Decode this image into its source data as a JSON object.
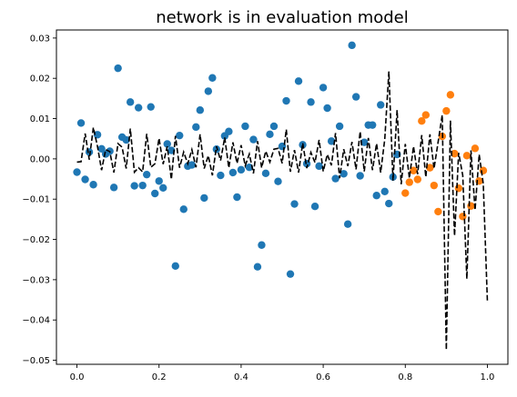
{
  "chart_data": {
    "type": "scatter",
    "title": "network is in evaluation model",
    "xlabel": "",
    "ylabel": "",
    "xlim": [
      -0.05,
      1.05
    ],
    "ylim": [
      -0.051,
      0.032
    ],
    "xticks": [
      0.0,
      0.2,
      0.4,
      0.6,
      0.8,
      1.0
    ],
    "xtick_labels": [
      "0.0",
      "0.2",
      "0.4",
      "0.6",
      "0.8",
      "1.0"
    ],
    "yticks": [
      -0.05,
      -0.04,
      -0.03,
      -0.02,
      -0.01,
      0.0,
      0.01,
      0.02,
      0.03
    ],
    "ytick_labels": [
      "−0.05",
      "−0.04",
      "−0.03",
      "−0.02",
      "−0.01",
      "0.00",
      "0.01",
      "0.02",
      "0.03"
    ],
    "grid": false,
    "legend": null,
    "series": [
      {
        "kind": "scatter",
        "color": "#1f77b4",
        "points": [
          [
            0.0,
            -0.0033
          ],
          [
            0.01,
            0.0089
          ],
          [
            0.02,
            -0.0051
          ],
          [
            0.03,
            0.0017
          ],
          [
            0.04,
            -0.0064
          ],
          [
            0.05,
            0.006
          ],
          [
            0.06,
            0.0025
          ],
          [
            0.07,
            0.0012
          ],
          [
            0.08,
            0.0019
          ],
          [
            0.09,
            -0.0071
          ],
          [
            0.1,
            0.0225
          ],
          [
            0.11,
            0.0054
          ],
          [
            0.12,
            0.0047
          ],
          [
            0.13,
            0.0141
          ],
          [
            0.14,
            -0.0067
          ],
          [
            0.15,
            0.0127
          ],
          [
            0.16,
            -0.0066
          ],
          [
            0.17,
            -0.0039
          ],
          [
            0.18,
            0.0129
          ],
          [
            0.19,
            -0.0086
          ],
          [
            0.2,
            -0.0055
          ],
          [
            0.21,
            -0.0072
          ],
          [
            0.22,
            0.0037
          ],
          [
            0.23,
            0.0021
          ],
          [
            0.24,
            -0.0266
          ],
          [
            0.25,
            0.0058
          ],
          [
            0.26,
            -0.0125
          ],
          [
            0.27,
            -0.0018
          ],
          [
            0.28,
            -0.0015
          ],
          [
            0.29,
            0.0079
          ],
          [
            0.3,
            0.0121
          ],
          [
            0.31,
            -0.0097
          ],
          [
            0.32,
            0.0168
          ],
          [
            0.33,
            0.0201
          ],
          [
            0.34,
            0.0024
          ],
          [
            0.35,
            -0.0041
          ],
          [
            0.36,
            0.0057
          ],
          [
            0.37,
            0.0068
          ],
          [
            0.38,
            -0.0034
          ],
          [
            0.39,
            -0.0095
          ],
          [
            0.4,
            -0.0027
          ],
          [
            0.41,
            0.0081
          ],
          [
            0.42,
            -0.0021
          ],
          [
            0.43,
            0.0048
          ],
          [
            0.44,
            -0.0268
          ],
          [
            0.45,
            -0.0214
          ],
          [
            0.46,
            -0.0036
          ],
          [
            0.47,
            0.0061
          ],
          [
            0.48,
            0.0081
          ],
          [
            0.49,
            -0.0056
          ],
          [
            0.5,
            0.0031
          ],
          [
            0.51,
            0.0144
          ],
          [
            0.52,
            -0.0286
          ],
          [
            0.53,
            -0.0112
          ],
          [
            0.54,
            0.0193
          ],
          [
            0.55,
            0.0035
          ],
          [
            0.56,
            -0.0012
          ],
          [
            0.57,
            0.0141
          ],
          [
            0.58,
            -0.0118
          ],
          [
            0.59,
            -0.0018
          ],
          [
            0.6,
            0.0177
          ],
          [
            0.61,
            0.0126
          ],
          [
            0.62,
            0.0044
          ],
          [
            0.63,
            -0.0049
          ],
          [
            0.64,
            0.0081
          ],
          [
            0.65,
            -0.0037
          ],
          [
            0.66,
            -0.0162
          ],
          [
            0.67,
            0.0282
          ],
          [
            0.68,
            0.0154
          ],
          [
            0.69,
            -0.0042
          ],
          [
            0.7,
            0.0041
          ],
          [
            0.71,
            0.0084
          ],
          [
            0.72,
            0.0084
          ],
          [
            0.73,
            -0.0091
          ],
          [
            0.74,
            0.0134
          ],
          [
            0.75,
            -0.0081
          ],
          [
            0.76,
            -0.0111
          ],
          [
            0.77,
            -0.0045
          ],
          [
            0.78,
            0.0011
          ]
        ]
      },
      {
        "kind": "scatter",
        "color": "#ff7f0e",
        "points": [
          [
            0.8,
            -0.0085
          ],
          [
            0.81,
            -0.0058
          ],
          [
            0.82,
            -0.0029
          ],
          [
            0.83,
            -0.0051
          ],
          [
            0.84,
            0.0094
          ],
          [
            0.85,
            0.0109
          ],
          [
            0.86,
            -0.0022
          ],
          [
            0.87,
            -0.0066
          ],
          [
            0.88,
            -0.0131
          ],
          [
            0.89,
            0.0056
          ],
          [
            0.9,
            0.0119
          ],
          [
            0.91,
            0.0159
          ],
          [
            0.92,
            0.0013
          ],
          [
            0.93,
            -0.0073
          ],
          [
            0.94,
            -0.0143
          ],
          [
            0.95,
            0.0008
          ],
          [
            0.96,
            -0.0117
          ],
          [
            0.97,
            0.0026
          ],
          [
            0.98,
            -0.0055
          ],
          [
            0.99,
            -0.0029
          ]
        ]
      },
      {
        "kind": "line",
        "color": "#000000",
        "dash": "dashed",
        "points": [
          [
            0.0,
            -0.0008
          ],
          [
            0.01,
            -0.0007
          ],
          [
            0.02,
            0.0063
          ],
          [
            0.03,
            -0.0002
          ],
          [
            0.04,
            0.0078
          ],
          [
            0.05,
            0.0031
          ],
          [
            0.06,
            -0.0028
          ],
          [
            0.07,
            0.0023
          ],
          [
            0.08,
            0.0018
          ],
          [
            0.09,
            -0.0034
          ],
          [
            0.1,
            0.0038
          ],
          [
            0.11,
            0.0029
          ],
          [
            0.12,
            -0.0024
          ],
          [
            0.13,
            0.0075
          ],
          [
            0.14,
            -0.0033
          ],
          [
            0.15,
            -0.0022
          ],
          [
            0.16,
            -0.0032
          ],
          [
            0.17,
            0.0062
          ],
          [
            0.18,
            -0.0021
          ],
          [
            0.19,
            -0.0012
          ],
          [
            0.2,
            0.0051
          ],
          [
            0.21,
            -0.0013
          ],
          [
            0.22,
            0.0031
          ],
          [
            0.23,
            -0.0051
          ],
          [
            0.24,
            0.0057
          ],
          [
            0.25,
            -0.0022
          ],
          [
            0.26,
            0.0017
          ],
          [
            0.27,
            -0.0012
          ],
          [
            0.28,
            0.0023
          ],
          [
            0.29,
            -0.0021
          ],
          [
            0.3,
            0.0061
          ],
          [
            0.31,
            -0.0024
          ],
          [
            0.32,
            0.0008
          ],
          [
            0.33,
            -0.0041
          ],
          [
            0.34,
            0.0031
          ],
          [
            0.35,
            -0.0004
          ],
          [
            0.36,
            0.0053
          ],
          [
            0.37,
            -0.0022
          ],
          [
            0.38,
            0.0041
          ],
          [
            0.39,
            -0.0011
          ],
          [
            0.4,
            0.0034
          ],
          [
            0.41,
            -0.0017
          ],
          [
            0.42,
            0.0012
          ],
          [
            0.43,
            -0.0036
          ],
          [
            0.44,
            0.0044
          ],
          [
            0.45,
            -0.0022
          ],
          [
            0.46,
            0.0019
          ],
          [
            0.47,
            -0.0008
          ],
          [
            0.48,
            0.0024
          ],
          [
            0.49,
            0.0026
          ],
          [
            0.5,
            -0.0011
          ],
          [
            0.51,
            0.0073
          ],
          [
            0.52,
            -0.0032
          ],
          [
            0.53,
            0.0022
          ],
          [
            0.54,
            -0.0034
          ],
          [
            0.55,
            0.0039
          ],
          [
            0.56,
            -0.0023
          ],
          [
            0.57,
            0.0016
          ],
          [
            0.58,
            -0.0009
          ],
          [
            0.59,
            0.0047
          ],
          [
            0.6,
            -0.0031
          ],
          [
            0.61,
            0.0011
          ],
          [
            0.62,
            -0.0016
          ],
          [
            0.63,
            0.0064
          ],
          [
            0.64,
            -0.0048
          ],
          [
            0.65,
            0.0024
          ],
          [
            0.66,
            -0.0018
          ],
          [
            0.67,
            0.0042
          ],
          [
            0.68,
            -0.0026
          ],
          [
            0.69,
            0.0068
          ],
          [
            0.7,
            -0.0031
          ],
          [
            0.71,
            0.0052
          ],
          [
            0.72,
            -0.0028
          ],
          [
            0.73,
            0.0038
          ],
          [
            0.74,
            -0.0034
          ],
          [
            0.75,
            0.0049
          ],
          [
            0.76,
            0.0217
          ],
          [
            0.77,
            -0.0054
          ],
          [
            0.78,
            0.0121
          ],
          [
            0.79,
            -0.0063
          ],
          [
            0.8,
            0.0037
          ],
          [
            0.81,
            -0.0048
          ],
          [
            0.82,
            0.0031
          ],
          [
            0.83,
            -0.0038
          ],
          [
            0.84,
            0.0059
          ],
          [
            0.85,
            -0.0045
          ],
          [
            0.86,
            0.0061
          ],
          [
            0.87,
            -0.0024
          ],
          [
            0.88,
            0.0042
          ],
          [
            0.89,
            0.0109
          ],
          [
            0.9,
            -0.0474
          ],
          [
            0.91,
            0.0095
          ],
          [
            0.92,
            -0.0191
          ],
          [
            0.93,
            0.0015
          ],
          [
            0.94,
            -0.0041
          ],
          [
            0.95,
            -0.0298
          ],
          [
            0.96,
            0.0021
          ],
          [
            0.97,
            -0.0127
          ],
          [
            0.98,
            0.0011
          ],
          [
            0.99,
            -0.0062
          ],
          [
            1.0,
            -0.0352
          ]
        ]
      }
    ]
  }
}
